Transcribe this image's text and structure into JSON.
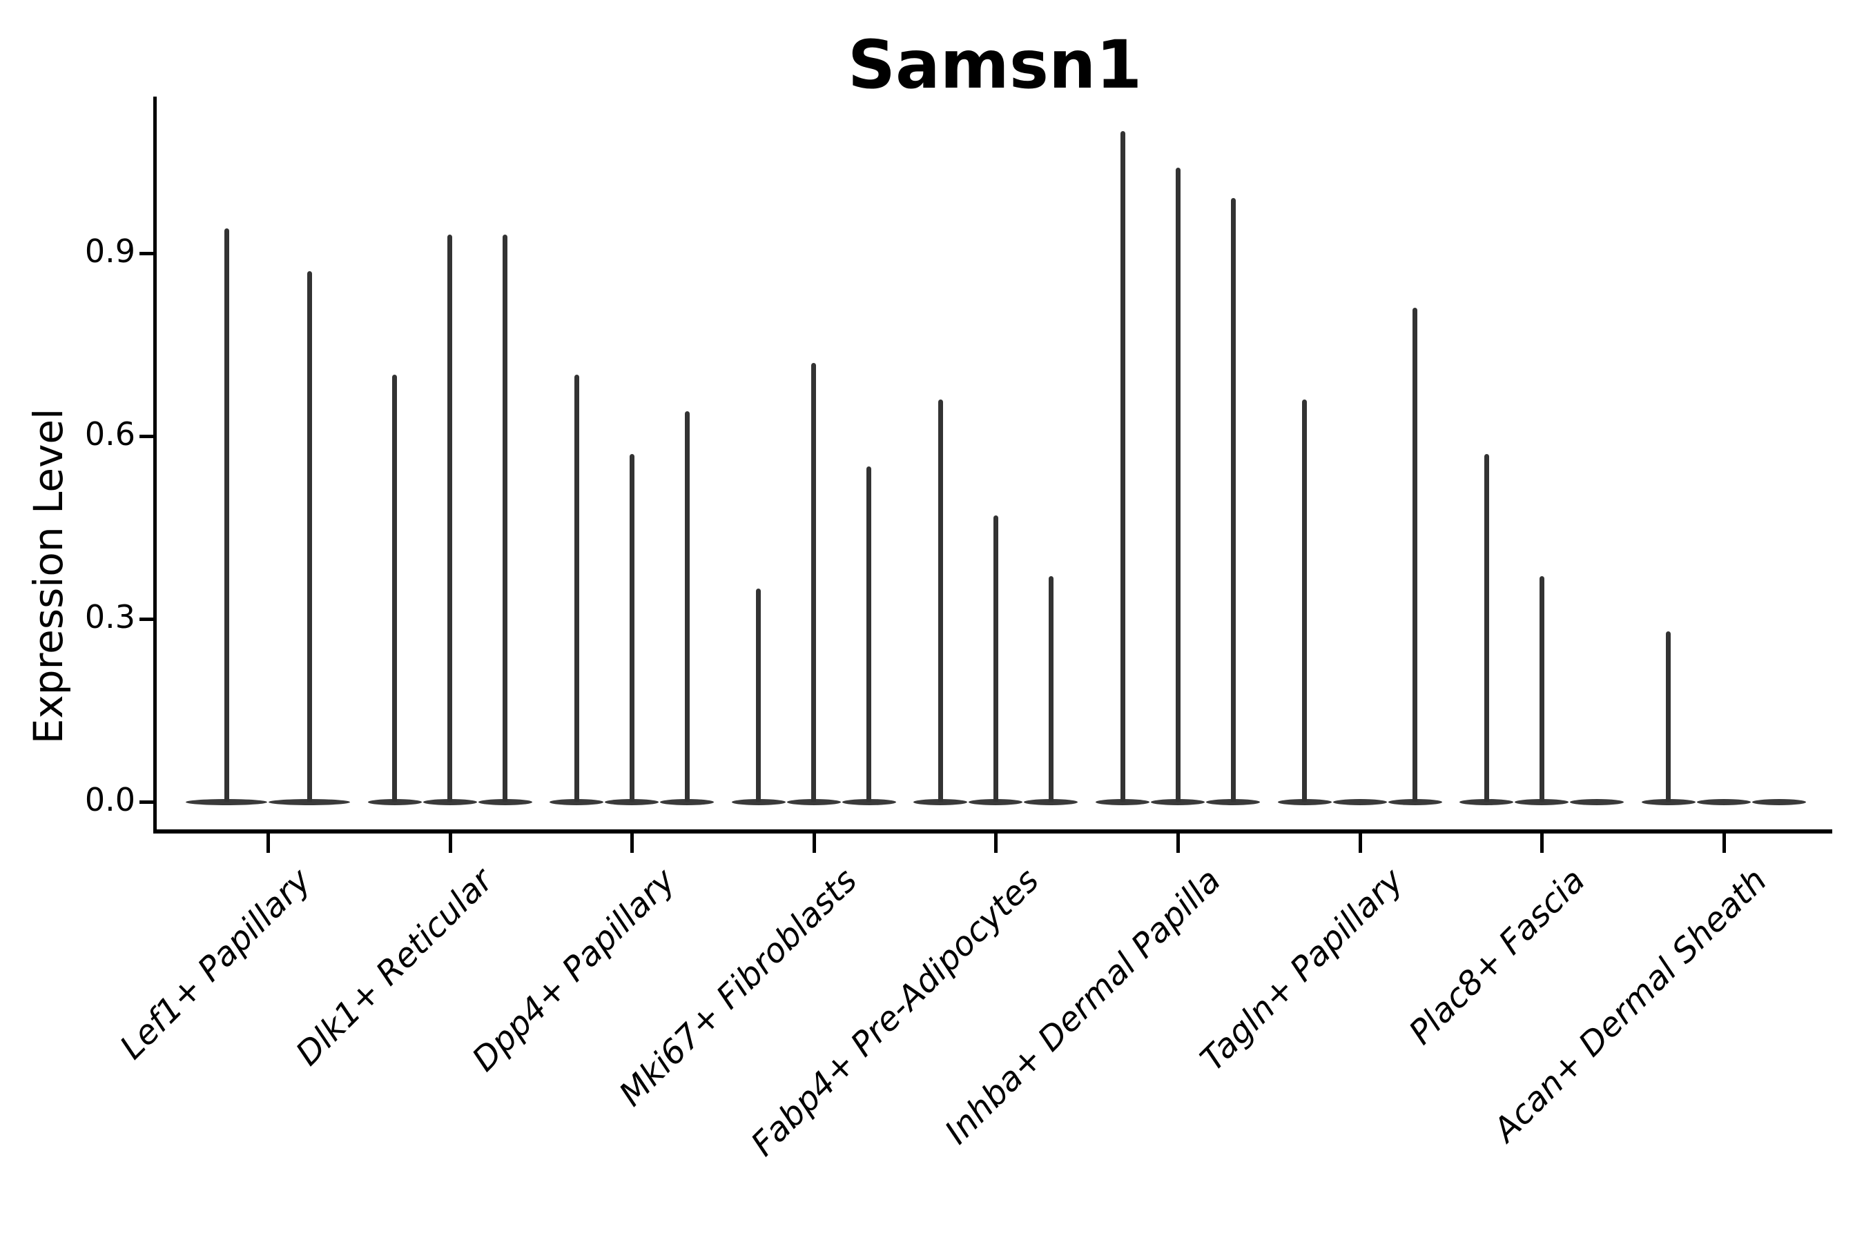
{
  "title": "Samsn1",
  "y_axis": {
    "label": "Expression Level",
    "tick_labels": [
      "0.0",
      "0.3",
      "0.6",
      "0.9"
    ],
    "tick_values": [
      0.0,
      0.3,
      0.6,
      0.9
    ]
  },
  "style": {
    "background": "#ffffff",
    "violin_color": "#333333",
    "violin_base_color": "#3a3a3a",
    "axis_color": "#000000",
    "text_color": "#000000"
  },
  "chart_data": {
    "type": "violin",
    "title": "Samsn1",
    "xlabel": "",
    "ylabel": "Expression Level",
    "ylim": [
      0,
      1.15
    ],
    "yticks": [
      0.0,
      0.3,
      0.6,
      0.9
    ],
    "grid": false,
    "legend": "none",
    "description": "Violin plot of Samsn1 expression per fibroblast cell type; each category holds 2-3 very thin violins (samples) whose mass is concentrated at 0 with a narrow spike up to the listed maximum expression value. Violins with max 0 are flat lines at 0.",
    "categories": [
      "Lef1+ Papillary",
      "Dlk1+ Reticular",
      "Dpp4+ Papillary",
      "Mki67+ Fibroblasts",
      "Fabp4+ Pre-Adipocytes",
      "Inhba+ Dermal Papilla",
      "Tagln+ Papillary",
      "Plac8+ Fascia",
      "Acan+ Dermal Sheath"
    ],
    "series": [
      {
        "category": "Lef1+ Papillary",
        "violin_max_values": [
          0.94,
          0.87
        ]
      },
      {
        "category": "Dlk1+ Reticular",
        "violin_max_values": [
          0.7,
          0.93,
          0.93
        ]
      },
      {
        "category": "Dpp4+ Papillary",
        "violin_max_values": [
          0.7,
          0.57,
          0.64
        ]
      },
      {
        "category": "Mki67+ Fibroblasts",
        "violin_max_values": [
          0.35,
          0.72,
          0.55
        ]
      },
      {
        "category": "Fabp4+ Pre-Adipocytes",
        "violin_max_values": [
          0.66,
          0.47,
          0.37
        ]
      },
      {
        "category": "Inhba+ Dermal Papilla",
        "violin_max_values": [
          1.1,
          1.04,
          0.99
        ]
      },
      {
        "category": "Tagln+ Papillary",
        "violin_max_values": [
          0.66,
          0.0,
          0.81
        ]
      },
      {
        "category": "Plac8+ Fascia",
        "violin_max_values": [
          0.57,
          0.37,
          0.0
        ]
      },
      {
        "category": "Acan+ Dermal Sheath",
        "violin_max_values": [
          0.28,
          0.0,
          0.0
        ]
      }
    ]
  }
}
